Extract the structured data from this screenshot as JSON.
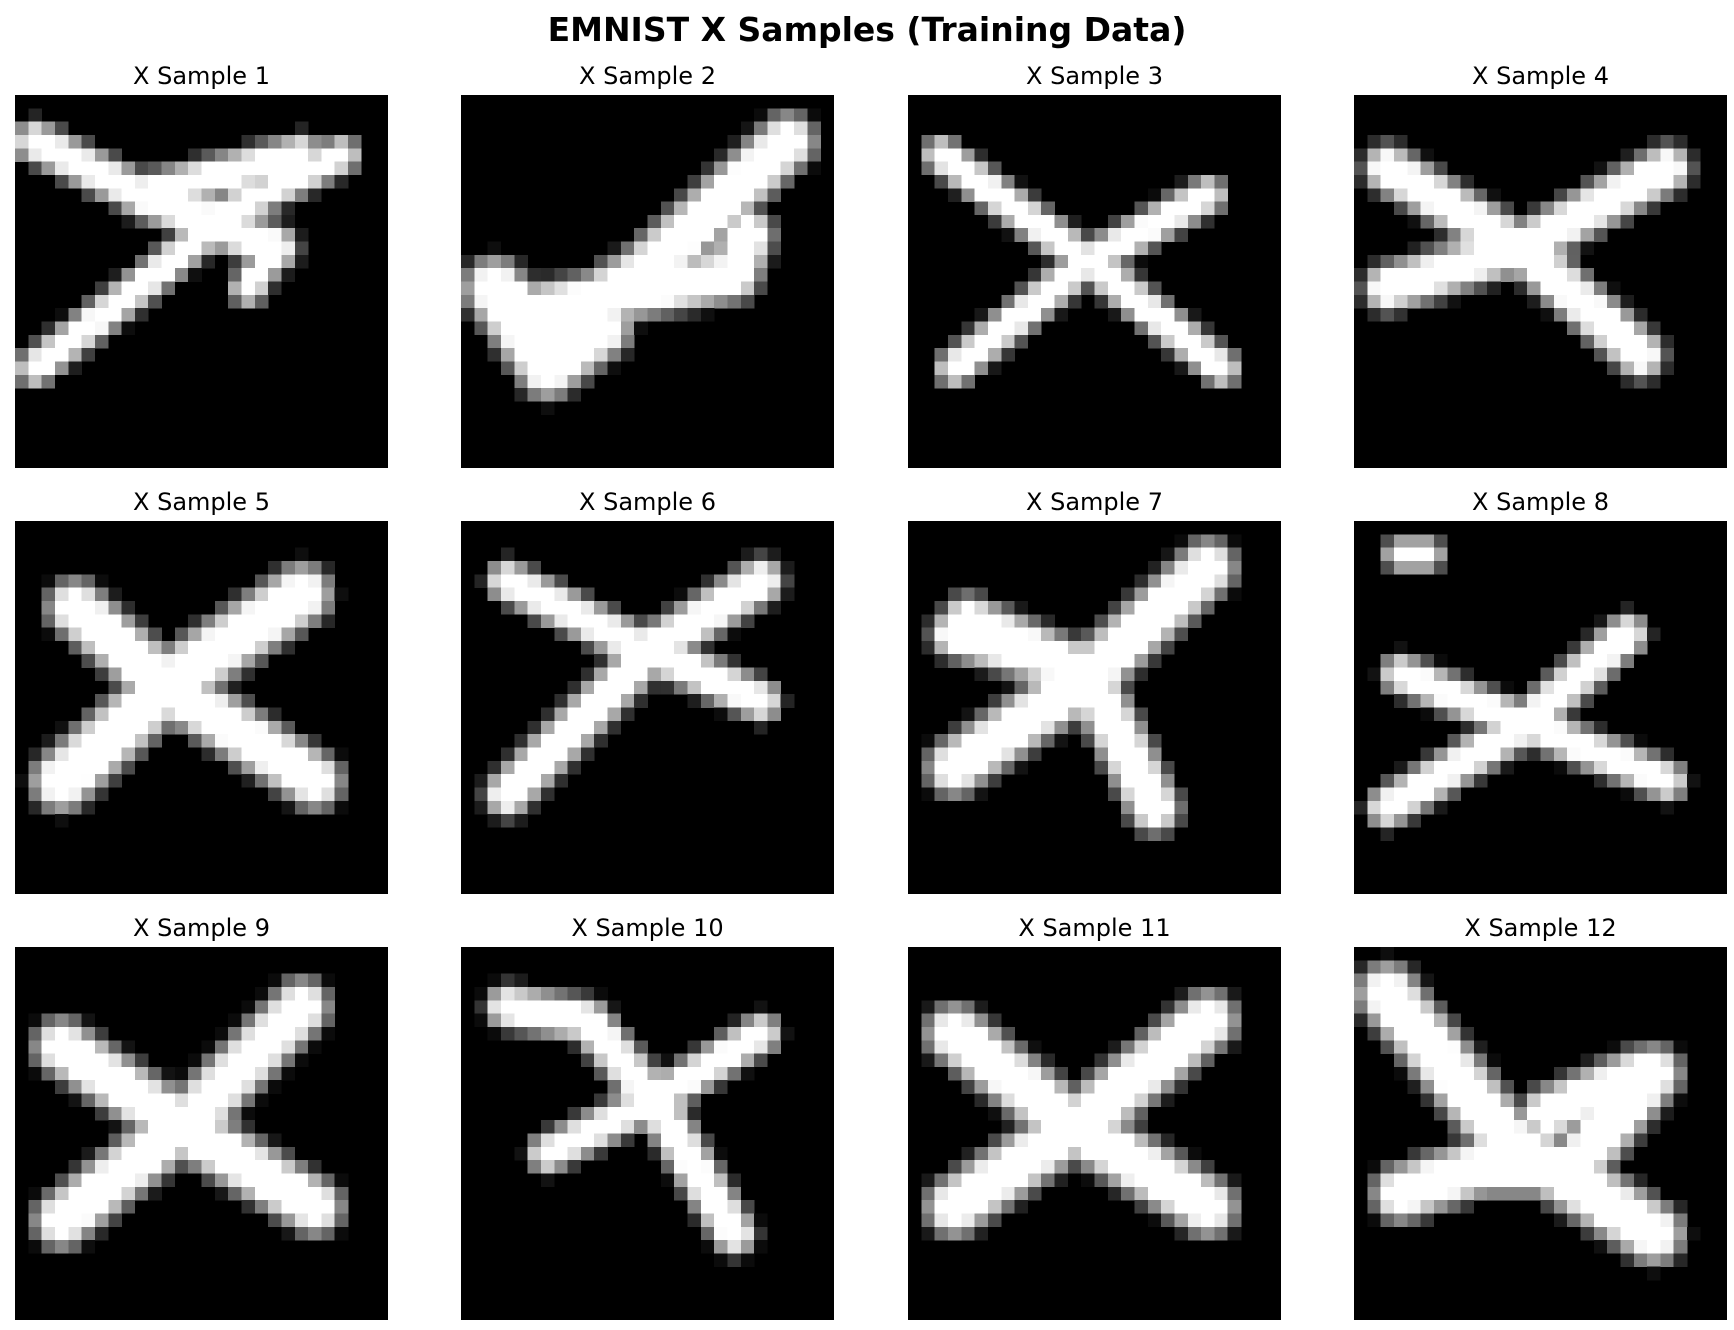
{
  "title": "EMNIST X Samples (Training Data)",
  "colors": {
    "background": "#000000",
    "stroke": "#ffffff"
  },
  "samples": [
    {
      "label": "X Sample 1",
      "strokes": [
        [
          [
            1,
            3
          ],
          [
            9,
            7
          ],
          [
            21,
            4
          ]
        ],
        [
          [
            1,
            20
          ],
          [
            10,
            13
          ],
          [
            16,
            8
          ],
          [
            24,
            4
          ]
        ],
        [
          [
            9,
            7
          ],
          [
            19,
            11
          ]
        ],
        [
          [
            19,
            11
          ],
          [
            17,
            14
          ]
        ]
      ],
      "widths": [
        1.3,
        1.1,
        1.5,
        1.0
      ]
    },
    {
      "label": "X Sample 2",
      "strokes": [
        [
          [
            2,
            14
          ],
          [
            6,
            17
          ],
          [
            13,
            13
          ],
          [
            24,
            3
          ]
        ],
        [
          [
            3,
            16
          ],
          [
            20,
            13
          ],
          [
            21,
            10
          ]
        ],
        [
          [
            2,
            14
          ],
          [
            6,
            20
          ],
          [
            10,
            17
          ]
        ]
      ],
      "widths": [
        2.0,
        1.8,
        2.2
      ]
    },
    {
      "label": "X Sample 3",
      "strokes": [
        [
          [
            2,
            4
          ],
          [
            13,
            12
          ],
          [
            23,
            20
          ]
        ],
        [
          [
            3,
            20
          ],
          [
            13,
            12
          ],
          [
            22,
            7
          ]
        ]
      ],
      "widths": [
        1.1,
        1.1
      ]
    },
    {
      "label": "X Sample 4",
      "strokes": [
        [
          [
            2,
            5
          ],
          [
            12,
            11
          ],
          [
            21,
            19
          ]
        ],
        [
          [
            2,
            14
          ],
          [
            12,
            11
          ],
          [
            23,
            5
          ]
        ]
      ],
      "widths": [
        1.6,
        1.6
      ]
    },
    {
      "label": "X Sample 5",
      "strokes": [
        [
          [
            4,
            6
          ],
          [
            11,
            12
          ],
          [
            22,
            19
          ]
        ],
        [
          [
            3,
            19
          ],
          [
            12,
            11
          ],
          [
            21,
            5
          ]
        ]
      ],
      "widths": [
        2.0,
        2.2
      ]
    },
    {
      "label": "X Sample 6",
      "strokes": [
        [
          [
            3,
            4
          ],
          [
            13,
            9
          ],
          [
            22,
            13
          ]
        ],
        [
          [
            3,
            20
          ],
          [
            14,
            9
          ],
          [
            22,
            4
          ]
        ]
      ],
      "widths": [
        1.3,
        1.5
      ]
    },
    {
      "label": "X Sample 7",
      "strokes": [
        [
          [
            4,
            7
          ],
          [
            13,
            11
          ],
          [
            18,
            21
          ]
        ],
        [
          [
            3,
            18
          ],
          [
            12,
            12
          ],
          [
            22,
            3
          ]
        ],
        [
          [
            3,
            8
          ],
          [
            10,
            10
          ]
        ]
      ],
      "widths": [
        1.8,
        2.0,
        1.6
      ]
    },
    {
      "label": "X Sample 8",
      "strokes": [
        [
          [
            3,
            11
          ],
          [
            13,
            15
          ],
          [
            23,
            19
          ]
        ],
        [
          [
            2,
            21
          ],
          [
            12,
            15
          ],
          [
            20,
            8
          ]
        ],
        [
          [
            3,
            2
          ],
          [
            5,
            2
          ]
        ]
      ],
      "widths": [
        1.2,
        1.3,
        0.9
      ]
    },
    {
      "label": "X Sample 9",
      "strokes": [
        [
          [
            3,
            7
          ],
          [
            12,
            13
          ],
          [
            22,
            19
          ]
        ],
        [
          [
            3,
            20
          ],
          [
            12,
            13
          ],
          [
            21,
            4
          ]
        ]
      ],
      "widths": [
        2.0,
        2.0
      ]
    },
    {
      "label": "X Sample 10",
      "strokes": [
        [
          [
            3,
            4
          ],
          [
            9,
            5
          ],
          [
            14,
            11
          ],
          [
            20,
            21
          ]
        ],
        [
          [
            6,
            15
          ],
          [
            14,
            11
          ],
          [
            22,
            6
          ]
        ]
      ],
      "widths": [
        1.4,
        1.2
      ]
    },
    {
      "label": "X Sample 11",
      "strokes": [
        [
          [
            3,
            6
          ],
          [
            12,
            13
          ],
          [
            22,
            19
          ]
        ],
        [
          [
            3,
            19
          ],
          [
            12,
            13
          ],
          [
            22,
            5
          ]
        ]
      ],
      "widths": [
        2.1,
        2.1
      ]
    },
    {
      "label": "X Sample 12",
      "strokes": [
        [
          [
            2,
            3
          ],
          [
            11,
            14
          ],
          [
            22,
            21
          ]
        ],
        [
          [
            3,
            18
          ],
          [
            9,
            16
          ],
          [
            16,
            16
          ],
          [
            22,
            9
          ]
        ],
        [
          [
            14,
            12
          ],
          [
            21,
            9
          ]
        ]
      ],
      "widths": [
        2.2,
        2.0,
        1.8
      ]
    }
  ]
}
